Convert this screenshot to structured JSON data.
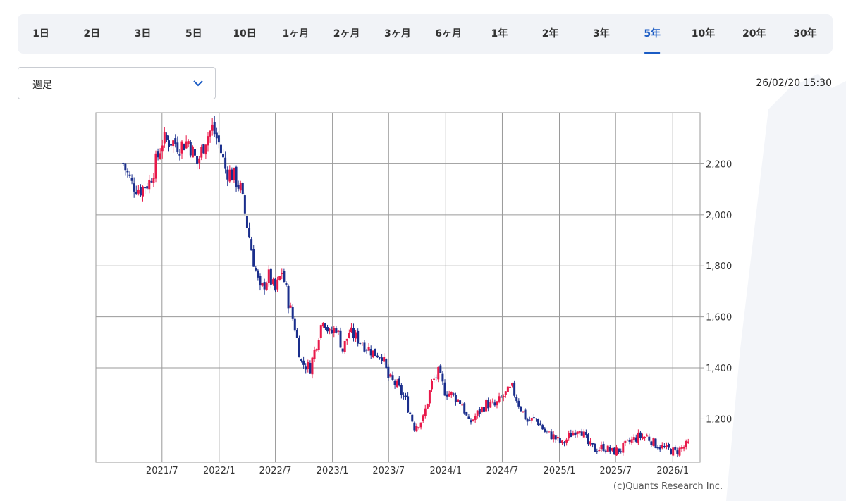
{
  "periods": [
    "1日",
    "2日",
    "3日",
    "5日",
    "10日",
    "1ヶ月",
    "2ヶ月",
    "3ヶ月",
    "6ヶ月",
    "1年",
    "2年",
    "3年",
    "5年",
    "10年",
    "20年",
    "30年"
  ],
  "active_period": "5年",
  "interval_select": {
    "value": "週足"
  },
  "timestamp": "26/02/20 15:30",
  "copyright": "(c)Quants Research Inc.",
  "colors": {
    "up": "#e8194a",
    "down": "#1a2e8c",
    "accent": "#1a5bc4",
    "grid": "#9a9a9a"
  },
  "icons": {
    "dropdown": "chevron-down-icon"
  },
  "chart_data": {
    "type": "candlestick",
    "title": "",
    "xlabel": "",
    "ylabel": "",
    "x_ticks": [
      "2021/7",
      "2022/1",
      "2022/7",
      "2023/1",
      "2023/7",
      "2024/1",
      "2024/7",
      "2025/1",
      "2025/7",
      "2026/1"
    ],
    "y_ticks": [
      1200,
      1400,
      1600,
      1800,
      2000,
      2200
    ],
    "y_tick_labels": [
      "1,200",
      "1,400",
      "1,600",
      "1,800",
      "2,000",
      "2,200"
    ],
    "ylim": [
      1030,
      2400
    ],
    "xlim": [
      "2020-11-30",
      "2026-03-30"
    ],
    "grid": true,
    "series": [
      {
        "values": [
          [
            "2021-02-26",
            2200
          ],
          [
            "2021-03-26",
            2120
          ],
          [
            "2021-04-23",
            2100
          ],
          [
            "2021-05-21",
            2130
          ],
          [
            "2021-06-18",
            2230
          ],
          [
            "2021-07-02",
            2290
          ],
          [
            "2021-07-30",
            2290
          ],
          [
            "2021-08-27",
            2270
          ],
          [
            "2021-09-24",
            2290
          ],
          [
            "2021-10-22",
            2200
          ],
          [
            "2021-11-19",
            2300
          ],
          [
            "2021-12-10",
            2340
          ],
          [
            "2021-12-31",
            2280
          ],
          [
            "2022-01-21",
            2180
          ],
          [
            "2022-02-18",
            2150
          ],
          [
            "2022-03-11",
            2100
          ],
          [
            "2022-04-01",
            1960
          ],
          [
            "2022-04-22",
            1820
          ],
          [
            "2022-05-13",
            1700
          ],
          [
            "2022-06-10",
            1760
          ],
          [
            "2022-07-01",
            1700
          ],
          [
            "2022-07-22",
            1780
          ],
          [
            "2022-08-12",
            1660
          ],
          [
            "2022-09-02",
            1560
          ],
          [
            "2022-09-23",
            1420
          ],
          [
            "2022-10-21",
            1400
          ],
          [
            "2022-11-11",
            1500
          ],
          [
            "2022-12-02",
            1600
          ],
          [
            "2022-12-23",
            1530
          ],
          [
            "2023-01-13",
            1560
          ],
          [
            "2023-02-03",
            1470
          ],
          [
            "2023-02-24",
            1540
          ],
          [
            "2023-03-17",
            1520
          ],
          [
            "2023-04-14",
            1490
          ],
          [
            "2023-05-12",
            1460
          ],
          [
            "2023-06-09",
            1450
          ],
          [
            "2023-06-30",
            1360
          ],
          [
            "2023-07-28",
            1330
          ],
          [
            "2023-08-25",
            1270
          ],
          [
            "2023-09-22",
            1170
          ],
          [
            "2023-10-20",
            1200
          ],
          [
            "2023-11-17",
            1340
          ],
          [
            "2023-12-08",
            1380
          ],
          [
            "2023-12-29",
            1310
          ],
          [
            "2024-01-26",
            1290
          ],
          [
            "2024-02-23",
            1260
          ],
          [
            "2024-03-15",
            1180
          ],
          [
            "2024-04-12",
            1220
          ],
          [
            "2024-05-10",
            1260
          ],
          [
            "2024-06-07",
            1250
          ],
          [
            "2024-07-05",
            1290
          ],
          [
            "2024-08-02",
            1320
          ],
          [
            "2024-08-23",
            1260
          ],
          [
            "2024-09-20",
            1190
          ],
          [
            "2024-10-18",
            1200
          ],
          [
            "2024-11-15",
            1150
          ],
          [
            "2024-12-13",
            1130
          ],
          [
            "2025-01-10",
            1100
          ],
          [
            "2025-02-07",
            1140
          ],
          [
            "2025-03-07",
            1170
          ],
          [
            "2025-04-04",
            1100
          ],
          [
            "2025-04-25",
            1080
          ],
          [
            "2025-05-23",
            1090
          ],
          [
            "2025-06-20",
            1070
          ],
          [
            "2025-07-18",
            1080
          ],
          [
            "2025-08-15",
            1110
          ],
          [
            "2025-09-12",
            1130
          ],
          [
            "2025-10-10",
            1130
          ],
          [
            "2025-11-07",
            1100
          ],
          [
            "2025-12-05",
            1085
          ],
          [
            "2026-01-09",
            1070
          ],
          [
            "2026-02-20",
            1100
          ]
        ]
      }
    ]
  }
}
